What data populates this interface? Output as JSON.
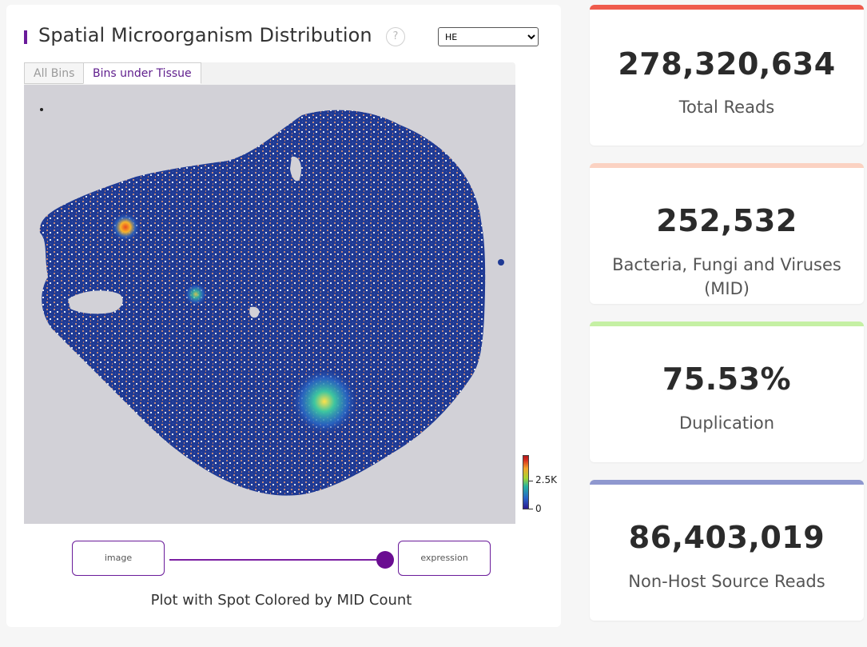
{
  "panel": {
    "title": "Spatial Microorganism Distribution",
    "help_icon_glyph": "?",
    "stain_select": {
      "value": "HE",
      "options": [
        "HE"
      ]
    },
    "tabs": [
      {
        "label": "All Bins",
        "active": false
      },
      {
        "label": "Bins under Tissue",
        "active": true
      }
    ],
    "colorbar": {
      "labels": [
        "2.5K",
        "0"
      ]
    },
    "toggle": {
      "left_label": "image",
      "right_label": "expression",
      "position": "expression"
    },
    "caption": "Plot with Spot Colored by MID Count"
  },
  "stats": [
    {
      "value": "278,320,634",
      "label": "Total Reads",
      "accent": "#ef5b4c"
    },
    {
      "value": "252,532",
      "label": "Bacteria, Fungi and Viruses (MID)",
      "accent": "#fbd2c2"
    },
    {
      "value": "75.53%",
      "label": "Duplication",
      "accent": "#c5f0a4"
    },
    {
      "value": "86,403,019",
      "label": "Non-Host Source Reads",
      "accent": "#8f98cf"
    }
  ],
  "icons": {
    "help": "question-circle-icon"
  }
}
